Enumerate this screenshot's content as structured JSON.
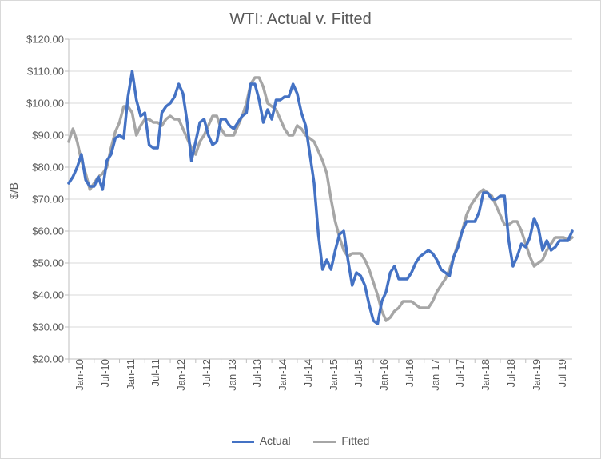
{
  "chart": {
    "type": "line",
    "title": "WTI: Actual v. Fitted",
    "ylabel": "$/B",
    "title_fontsize": 20,
    "label_fontsize": 14,
    "tick_fontsize": 13,
    "background_color": "#ffffff",
    "border_color": "#d9d9d9",
    "grid_color": "#d9d9d9",
    "axis_color": "#bfbfbf",
    "tick_color": "#bfbfbf",
    "text_color": "#595959",
    "ylim": [
      20,
      120
    ],
    "ytick_step": 10,
    "yticks": [
      "$20.00",
      "$30.00",
      "$40.00",
      "$50.00",
      "$60.00",
      "$70.00",
      "$80.00",
      "$90.00",
      "$100.00",
      "$110.00",
      "$120.00"
    ],
    "line_width_actual": 3.5,
    "line_width_fitted": 3.5,
    "x_labels": [
      "Jan-10",
      "Jul-10",
      "Jan-11",
      "Jul-11",
      "Jan-12",
      "Jul-12",
      "Jan-13",
      "Jul-13",
      "Jan-14",
      "Jul-14",
      "Jan-15",
      "Jul-15",
      "Jan-16",
      "Jul-16",
      "Jan-17",
      "Jul-17",
      "Jan-18",
      "Jul-18",
      "Jan-19",
      "Jul-19"
    ],
    "x_label_interval": 6,
    "n_points": 120,
    "series": {
      "actual": {
        "label": "Actual",
        "color": "#4472c4",
        "data": [
          75,
          77,
          80,
          84,
          76,
          74,
          74,
          77,
          73,
          82,
          84,
          89,
          90,
          89,
          102,
          110,
          101,
          96,
          97,
          87,
          86,
          86,
          97,
          99,
          100,
          102,
          106,
          103,
          94,
          82,
          88,
          94,
          95,
          90,
          87,
          88,
          95,
          95,
          93,
          92,
          94,
          96,
          97,
          106,
          106,
          101,
          94,
          98,
          95,
          101,
          101,
          102,
          102,
          106,
          103,
          97,
          93,
          84,
          75,
          59,
          48,
          51,
          48,
          54,
          59,
          60,
          51,
          43,
          47,
          46,
          43,
          37,
          32,
          31,
          38,
          41,
          47,
          49,
          45,
          45,
          45,
          47,
          50,
          52,
          53,
          54,
          53,
          51,
          48,
          47,
          46,
          52,
          55,
          60,
          63,
          63,
          63,
          66,
          72,
          72,
          70,
          70,
          71,
          71,
          57,
          49,
          52,
          56,
          55,
          58,
          64,
          61,
          54,
          57,
          54,
          55,
          57,
          57,
          57,
          60
        ]
      },
      "fitted": {
        "label": "Fitted",
        "color": "#a6a6a6",
        "data": [
          88,
          92,
          88,
          82,
          78,
          73,
          75,
          77,
          78,
          80,
          86,
          91,
          94,
          99,
          99,
          97,
          90,
          93,
          95,
          95,
          94,
          94,
          93,
          95,
          96,
          95,
          95,
          92,
          89,
          86,
          84,
          88,
          90,
          93,
          96,
          96,
          92,
          90,
          90,
          90,
          93,
          96,
          100,
          106,
          108,
          108,
          105,
          100,
          99,
          98,
          95,
          92,
          90,
          90,
          93,
          92,
          90,
          89,
          88,
          85,
          82,
          78,
          70,
          63,
          58,
          54,
          52,
          53,
          53,
          53,
          51,
          48,
          44,
          40,
          35,
          32,
          33,
          35,
          36,
          38,
          38,
          38,
          37,
          36,
          36,
          36,
          38,
          41,
          43,
          45,
          48,
          52,
          56,
          60,
          65,
          68,
          70,
          72,
          73,
          72,
          71,
          68,
          65,
          62,
          62,
          63,
          63,
          60,
          56,
          52,
          49,
          50,
          51,
          54,
          56,
          58,
          58,
          58,
          57,
          58
        ]
      }
    },
    "legend": {
      "position": "bottom",
      "items": [
        "Actual",
        "Fitted"
      ]
    }
  }
}
